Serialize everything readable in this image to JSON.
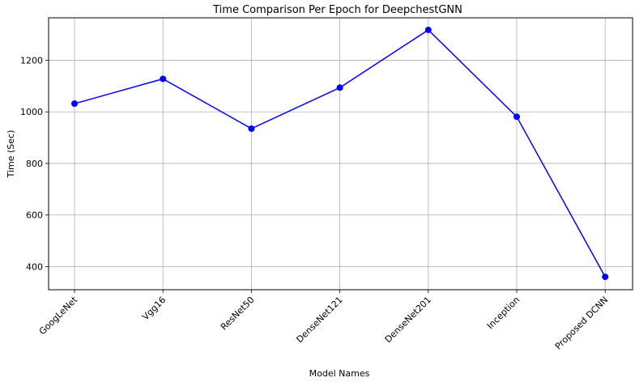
{
  "chart_data": {
    "type": "line",
    "title": "Time Comparison Per Epoch for DeepchestGNN",
    "xlabel": "Model Names",
    "ylabel": "Time (Sec)",
    "categories": [
      "GoogLeNet",
      "Vgg16",
      "ResNet50",
      "DenseNet121",
      "DenseNet201",
      "Inception",
      "Proposed DCNN"
    ],
    "series": [
      {
        "values": [
          1032,
          1128,
          935,
          1094,
          1318,
          981,
          360
        ],
        "color": "#0000ff",
        "marker": "circle"
      }
    ],
    "yticks": [
      400,
      600,
      800,
      1000,
      1200
    ],
    "ylim": [
      310,
      1365
    ],
    "grid": true,
    "legend": "none"
  }
}
